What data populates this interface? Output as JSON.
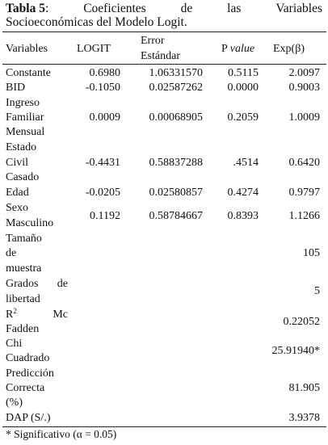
{
  "caption": {
    "label": "Tabla 5",
    "w1": "Coeficientes",
    "w2": "de",
    "w3": "las",
    "w4": "Variables",
    "line2": "Socioeconómicas del Modelo Logit."
  },
  "headers": {
    "variables": "Variables",
    "logit": "LOGIT",
    "error_l1": "Error",
    "error_l2": "Estándar",
    "pvalue_p": "P",
    "pvalue_v": "value",
    "exp": "Exp(β)"
  },
  "rows": {
    "constante": {
      "label": "Constante",
      "logit": "0.6980",
      "error": "1.06331570",
      "p": "0.5115",
      "exp": "2.0097"
    },
    "bid": {
      "label": "BID",
      "logit": "-0.1050",
      "error": "0.02587262",
      "p": "0.0000",
      "exp": "0.9003"
    },
    "ingreso": {
      "l1": "Ingreso",
      "l2": "Familiar",
      "l3": "Mensual",
      "logit": "0.0009",
      "error": "0.00068905",
      "p": "0.2059",
      "exp": "1.0009"
    },
    "estado": {
      "l1": "Estado",
      "l2": "Civil",
      "l3": "Casado",
      "logit": "-0.4431",
      "error": "0.58837288",
      "p": ".4514",
      "exp": "0.6420"
    },
    "edad": {
      "label": "Edad",
      "logit": "-0.0205",
      "error": "0.02580857",
      "p": "0.4274",
      "exp": "0.9797"
    },
    "sexo": {
      "l1": "Sexo",
      "l2": "Masculino",
      "logit": "0.1192",
      "error": "0.58784667",
      "p": "0.8393",
      "exp": "1.1266"
    },
    "tamano": {
      "l1": "Tamaño",
      "l2": "de",
      "l3": "muestra",
      "exp": "105"
    },
    "grados": {
      "l1a": "Grados",
      "l1b": "de",
      "l2": "libertad",
      "exp": "5"
    },
    "r2": {
      "r": "R",
      "sup": "2",
      "mc": "Mc",
      "l2": "Fadden",
      "exp": "0.22052"
    },
    "chi": {
      "l1": "Chi",
      "l2": "Cuadrado",
      "exp": "25.91940*"
    },
    "prediccion": {
      "l1": "Predicción",
      "l2": "Correcta",
      "l3": "(%)",
      "exp": "81.905"
    },
    "dap": {
      "label": "DAP (S/.)",
      "exp": "3.9378"
    }
  },
  "footnote": "* Significativo (α = 0.05)"
}
